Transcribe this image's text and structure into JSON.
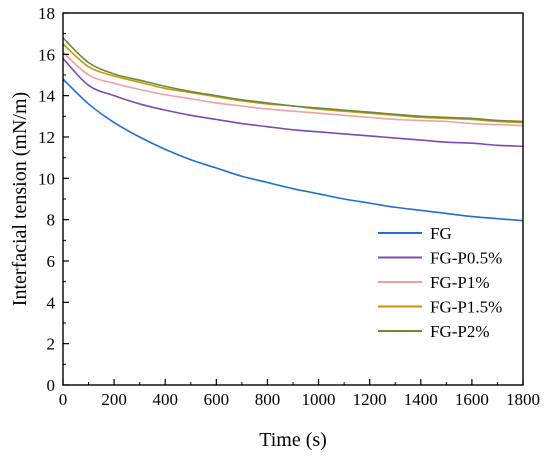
{
  "chart_data": {
    "type": "line",
    "title": "",
    "xlabel": "Time (s)",
    "ylabel": "Interfacial tension (mN/m)",
    "xlim": [
      0,
      1800
    ],
    "ylim": [
      0,
      18
    ],
    "xticks": [
      0,
      200,
      400,
      600,
      800,
      1000,
      1200,
      1400,
      1600,
      1800
    ],
    "yticks": [
      0,
      2,
      4,
      6,
      8,
      10,
      12,
      14,
      16,
      18
    ],
    "grid": false,
    "legend_position": "bottom-right",
    "x": [
      0,
      100,
      200,
      300,
      400,
      500,
      600,
      700,
      800,
      900,
      1000,
      1100,
      1200,
      1300,
      1400,
      1500,
      1600,
      1700,
      1800
    ],
    "series": [
      {
        "name": "FG",
        "color": "#1f6fd1",
        "values": [
          14.8,
          13.6,
          12.7,
          12.0,
          11.4,
          10.9,
          10.5,
          10.1,
          9.8,
          9.5,
          9.25,
          9.0,
          8.8,
          8.6,
          8.45,
          8.3,
          8.15,
          8.05,
          7.95
        ]
      },
      {
        "name": "FG-P0.5%",
        "color": "#7b4bb5",
        "values": [
          15.8,
          14.5,
          14.0,
          13.6,
          13.3,
          13.05,
          12.85,
          12.65,
          12.5,
          12.35,
          12.25,
          12.15,
          12.05,
          11.95,
          11.85,
          11.75,
          11.7,
          11.6,
          11.55
        ]
      },
      {
        "name": "FG-P1%",
        "color": "#f2a0a0",
        "values": [
          16.1,
          15.0,
          14.6,
          14.3,
          14.05,
          13.85,
          13.65,
          13.5,
          13.35,
          13.25,
          13.15,
          13.05,
          12.95,
          12.85,
          12.8,
          12.75,
          12.65,
          12.6,
          12.55
        ]
      },
      {
        "name": "FG-P1.5%",
        "color": "#c8960a",
        "values": [
          16.5,
          15.4,
          14.95,
          14.65,
          14.35,
          14.15,
          13.95,
          13.75,
          13.6,
          13.5,
          13.35,
          13.25,
          13.15,
          13.05,
          12.95,
          12.9,
          12.85,
          12.75,
          12.7
        ]
      },
      {
        "name": "FG-P2%",
        "color": "#6b8a3a",
        "values": [
          16.8,
          15.6,
          15.05,
          14.75,
          14.45,
          14.2,
          14.0,
          13.8,
          13.65,
          13.5,
          13.4,
          13.3,
          13.2,
          13.1,
          13.0,
          12.95,
          12.9,
          12.8,
          12.75
        ]
      }
    ]
  }
}
